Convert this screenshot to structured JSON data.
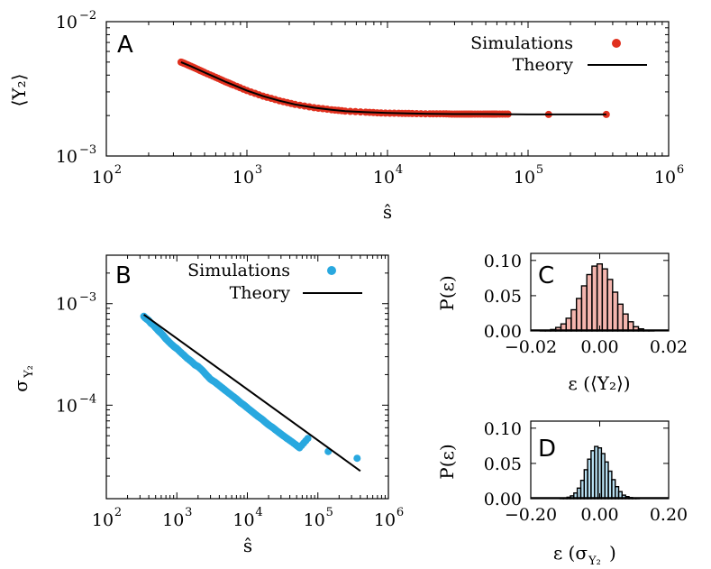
{
  "colors": {
    "red": "#e0301e",
    "blue": "#29a8df",
    "pink": "#f4b5ae",
    "lightblue": "#b8e0f2",
    "axis": "#000000"
  },
  "panels": {
    "A": {
      "letter": "A",
      "ylabel": "⟨Y₂⟩",
      "xlabel": "ŝ",
      "legend": {
        "sim": "Simulations",
        "theory": "Theory"
      },
      "xticks": [
        {
          "v": 100,
          "base": "10",
          "exp": "2"
        },
        {
          "v": 1000,
          "base": "10",
          "exp": "3"
        },
        {
          "v": 10000,
          "base": "10",
          "exp": "4"
        },
        {
          "v": 100000,
          "base": "10",
          "exp": "5"
        },
        {
          "v": 1000000,
          "base": "10",
          "exp": "6"
        }
      ],
      "yticks": [
        {
          "v": 0.01,
          "base": "10",
          "exp": "−2"
        },
        {
          "v": 0.001,
          "base": "10",
          "exp": "−3"
        }
      ]
    },
    "B": {
      "letter": "B",
      "ylabel": "σ",
      "ylabel_sub": "Y₂",
      "xlabel": "ŝ",
      "legend": {
        "sim": "Simulations",
        "theory": "Theory"
      },
      "xticks": [
        {
          "v": 100,
          "base": "10",
          "exp": "2"
        },
        {
          "v": 1000,
          "base": "10",
          "exp": "3"
        },
        {
          "v": 10000,
          "base": "10",
          "exp": "4"
        },
        {
          "v": 100000,
          "base": "10",
          "exp": "5"
        },
        {
          "v": 1000000,
          "base": "10",
          "exp": "6"
        }
      ],
      "yticks": [
        {
          "v": 0.001,
          "base": "10",
          "exp": "−3"
        },
        {
          "v": 0.0001,
          "base": "10",
          "exp": "−4"
        }
      ]
    },
    "C": {
      "letter": "C",
      "ylabel": "P(ε)",
      "xlabel": "ε (⟨Y₂⟩)",
      "xticks": [
        "−0.02",
        "0.00",
        "0.02"
      ],
      "yticks": [
        "0.10",
        "0.05",
        "0.00"
      ]
    },
    "D": {
      "letter": "D",
      "ylabel": "P(ε)",
      "xlabel": "ε (σ",
      "xlabel_sub": "Y₂",
      "xlabel_end": ")",
      "xticks": [
        "−0.20",
        "0.00",
        "0.20"
      ],
      "yticks": [
        "0.10",
        "0.05",
        "0.00"
      ]
    }
  },
  "chart_data": [
    {
      "panel": "A",
      "type": "scatter",
      "x_scale": "log",
      "y_scale": "log",
      "xlim": [
        100,
        1000000
      ],
      "ylim": [
        0.001,
        0.01
      ],
      "series": [
        {
          "name": "Simulations",
          "marker": "circle",
          "color": "#e0301e",
          "x": [
            340,
            360,
            400,
            450,
            500,
            600,
            700,
            800,
            1000,
            1300,
            1700,
            2200,
            3000,
            4000,
            5000,
            7000,
            9000,
            12000,
            15000,
            20000,
            25000,
            30000,
            35000,
            40000,
            48000,
            55000,
            60000,
            72000,
            140000,
            360000
          ],
          "y": [
            0.005,
            0.00488,
            0.00465,
            0.0044,
            0.00418,
            0.00385,
            0.00358,
            0.00338,
            0.00307,
            0.00279,
            0.00258,
            0.00242,
            0.00229,
            0.00221,
            0.00216,
            0.00212,
            0.00209,
            0.00208,
            0.00207,
            0.00206,
            0.00206,
            0.00205,
            0.00205,
            0.00205,
            0.00205,
            0.00205,
            0.00205,
            0.00205,
            0.00204,
            0.00204
          ]
        },
        {
          "name": "Theory",
          "marker": "line",
          "color": "#000000",
          "x": [
            340,
            400,
            500,
            600,
            700,
            800,
            1000,
            1300,
            1700,
            2200,
            3000,
            4000,
            5000,
            7000,
            10000,
            15000,
            20000,
            30000,
            50000,
            100000,
            200000,
            360000
          ],
          "y": [
            0.005,
            0.00465,
            0.00418,
            0.00385,
            0.00358,
            0.00338,
            0.00307,
            0.00279,
            0.00258,
            0.00242,
            0.00229,
            0.00221,
            0.00216,
            0.00212,
            0.00209,
            0.00207,
            0.00206,
            0.00205,
            0.00205,
            0.00204,
            0.00204,
            0.00204
          ]
        }
      ]
    },
    {
      "panel": "B",
      "type": "scatter",
      "x_scale": "log",
      "y_scale": "log",
      "xlim": [
        100,
        1000000
      ],
      "ylim": [
        1.2e-05,
        0.003
      ],
      "series": [
        {
          "name": "Simulations",
          "marker": "circle",
          "color": "#29a8df",
          "x": [
            340,
            360,
            380,
            400,
            430,
            460,
            500,
            550,
            600,
            650,
            700,
            800,
            900,
            1000,
            1200,
            1400,
            1600,
            1800,
            2000,
            2300,
            2600,
            3000,
            3500,
            4000,
            4500,
            5000,
            6000,
            7000,
            8000,
            9000,
            10000,
            12000,
            14000,
            16000,
            18000,
            20000,
            23000,
            26000,
            30000,
            35000,
            40000,
            48000,
            55000,
            72000,
            140000,
            360000
          ],
          "y": [
            0.00075,
            0.00072,
            0.0007,
            0.00068,
            0.00064,
            0.00062,
            0.00058,
            0.00054,
            0.00051,
            0.00048,
            0.00045,
            0.00041,
            0.00038,
            0.00036,
            0.00032,
            0.00029,
            0.00027,
            0.00025,
            0.00024,
            0.00022,
            0.0002,
            0.00018,
            0.000168,
            0.000156,
            0.000146,
            0.000138,
            0.000125,
            0.000115,
            0.000106,
            0.0001,
            9.4e-05,
            8.5e-05,
            7.8e-05,
            7.3e-05,
            6.8e-05,
            6.4e-05,
            6e-05,
            5.6e-05,
            5.2e-05,
            4.8e-05,
            4.5e-05,
            4.1e-05,
            3.8e-05,
            4.7e-05,
            3.5e-05,
            3e-05
          ]
        },
        {
          "name": "Theory",
          "marker": "line",
          "color": "#000000",
          "x": [
            340,
            400000
          ],
          "y": [
            0.00078,
            2.25e-05
          ]
        }
      ]
    },
    {
      "panel": "C",
      "type": "area",
      "xlim": [
        -0.02,
        0.02
      ],
      "ylim": [
        0,
        0.11
      ],
      "fill": "#f4b5ae",
      "x": [
        -0.0165,
        -0.015,
        -0.0135,
        -0.012,
        -0.0105,
        -0.009,
        -0.0075,
        -0.006,
        -0.0045,
        -0.003,
        -0.0015,
        0.0,
        0.0015,
        0.003,
        0.0045,
        0.006,
        0.0075,
        0.009,
        0.0105,
        0.012,
        0.0135,
        0.015
      ],
      "y": [
        0.0005,
        0.001,
        0.002,
        0.005,
        0.01,
        0.018,
        0.03,
        0.046,
        0.064,
        0.08,
        0.092,
        0.095,
        0.088,
        0.073,
        0.055,
        0.038,
        0.024,
        0.013,
        0.006,
        0.003,
        0.001,
        0.0005
      ]
    },
    {
      "panel": "D",
      "type": "area",
      "xlim": [
        -0.2,
        0.2
      ],
      "ylim": [
        0,
        0.11
      ],
      "fill": "#b8e0f2",
      "x": [
        -0.11,
        -0.1,
        -0.09,
        -0.08,
        -0.07,
        -0.06,
        -0.05,
        -0.04,
        -0.03,
        -0.02,
        -0.01,
        0.0,
        0.01,
        0.02,
        0.03,
        0.04,
        0.05,
        0.06,
        0.07,
        0.08,
        0.09,
        0.1,
        0.11
      ],
      "y": [
        0.0005,
        0.001,
        0.002,
        0.004,
        0.008,
        0.015,
        0.026,
        0.041,
        0.056,
        0.068,
        0.074,
        0.072,
        0.064,
        0.052,
        0.039,
        0.027,
        0.017,
        0.01,
        0.005,
        0.003,
        0.0015,
        0.0008,
        0.0003
      ]
    }
  ]
}
